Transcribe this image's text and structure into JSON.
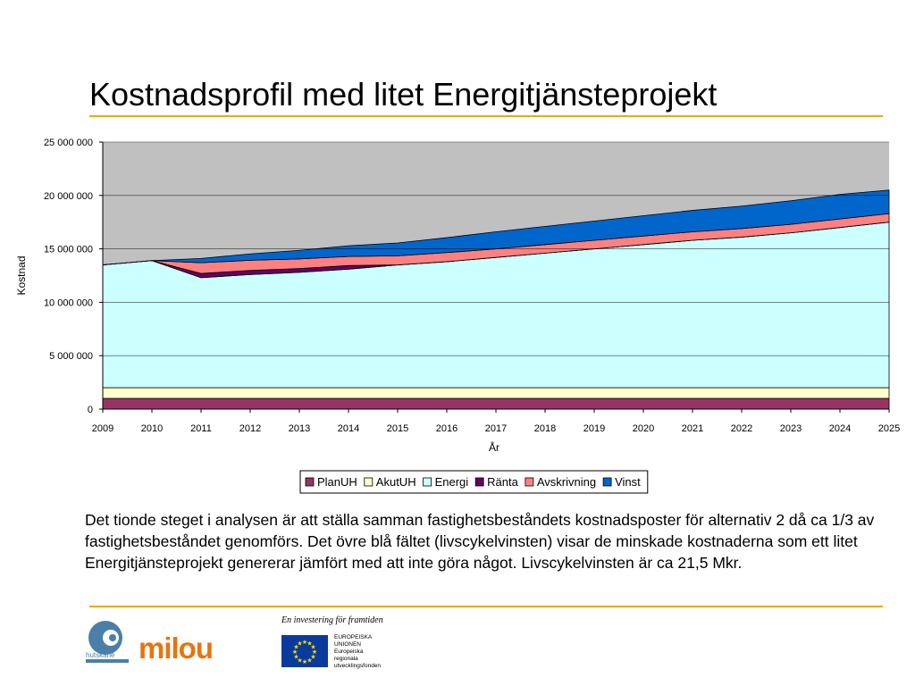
{
  "slide": {
    "title": "Kostnadsprofil med litet Energitjänsteprojekt",
    "body": "Det tionde steget i analysen är att ställa samman fastighetsbeståndets kostnadsposter för alternativ 2 då ca 1/3 av fastighetsbeståndet genomförs. Det övre blå fältet (livscykelvinsten) visar de minskade kostnaderna som ett litet Energitjänsteprojekt genererar jämfört med att inte göra något. Livscykelvinsten är ca 21,5 Mkr.",
    "accent_color": "#f0a51e"
  },
  "footer": {
    "tagline": "En investering för framtiden",
    "hutskane_label": "hutskåne",
    "milou_label": "milou",
    "eu_lines": [
      "EUROPEISKA",
      "UNIONEN",
      "Europeiska",
      "regionala",
      "utvecklingsfonden"
    ]
  },
  "chart_data": {
    "type": "area",
    "stacked": true,
    "xlabel": "År",
    "ylabel": "Kostnad",
    "ylim": [
      0,
      25000000
    ],
    "yticks": [
      0,
      5000000,
      10000000,
      15000000,
      20000000,
      25000000
    ],
    "ytick_labels": [
      "0",
      "5 000 000",
      "10 000 000",
      "15 000 000",
      "20 000 000",
      "25 000 000"
    ],
    "grid": true,
    "legend": "bottom-center",
    "plot_background": "#c0c0c0",
    "categories": [
      "2009",
      "2010",
      "2011",
      "2012",
      "2013",
      "2014",
      "2015",
      "2016",
      "2017",
      "2018",
      "2019",
      "2020",
      "2021",
      "2022",
      "2023",
      "2024",
      "2025"
    ],
    "series": [
      {
        "name": "PlanUH",
        "color": "#993366",
        "values": [
          1000000,
          1000000,
          1000000,
          1000000,
          1000000,
          1000000,
          1000000,
          1000000,
          1000000,
          1000000,
          1000000,
          1000000,
          1000000,
          1000000,
          1000000,
          1000000,
          1000000
        ]
      },
      {
        "name": "AkutUH",
        "color": "#ffffcc",
        "values": [
          1000000,
          1000000,
          1000000,
          1000000,
          1000000,
          1000000,
          1000000,
          1000000,
          1000000,
          1000000,
          1000000,
          1000000,
          1000000,
          1000000,
          1000000,
          1000000,
          1000000
        ]
      },
      {
        "name": "Energi",
        "color": "#ccffff",
        "values": [
          11500000,
          11900000,
          10300000,
          10600000,
          10800000,
          11100000,
          11500000,
          11800000,
          12200000,
          12600000,
          13000000,
          13400000,
          13800000,
          14100000,
          14500000,
          15000000,
          15500000
        ]
      },
      {
        "name": "Ränta",
        "color": "#660066",
        "values": [
          0,
          0,
          400000,
          380000,
          360000,
          340000,
          0,
          0,
          0,
          0,
          0,
          0,
          0,
          0,
          0,
          0,
          0
        ]
      },
      {
        "name": "Avskrivning",
        "color": "#ff8080",
        "values": [
          0,
          0,
          1000000,
          950000,
          900000,
          850000,
          850000,
          850000,
          800000,
          800000,
          800000,
          800000,
          800000,
          800000,
          800000,
          800000,
          800000
        ]
      },
      {
        "name": "Vinst",
        "color": "#0066cc",
        "values": [
          0,
          0,
          400000,
          600000,
          800000,
          1000000,
          1200000,
          1400000,
          1600000,
          1700000,
          1800000,
          1900000,
          2000000,
          2100000,
          2200000,
          2300000,
          2200000
        ]
      }
    ]
  }
}
